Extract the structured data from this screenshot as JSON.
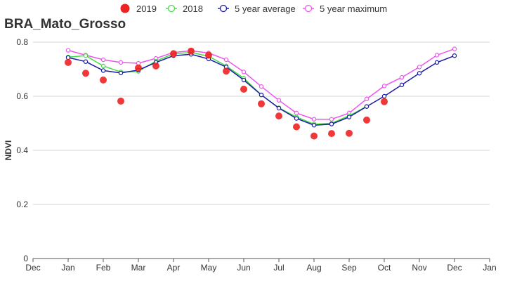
{
  "chart_data": {
    "type": "line",
    "title": "BRA_Mato_Grosso",
    "ylabel": "NDVI",
    "xlabel": "",
    "ylim": [
      0,
      0.8
    ],
    "y_ticks": [
      "0",
      "0.2",
      "0.4",
      "0.6",
      "0.8"
    ],
    "x_ticks": [
      "Dec",
      "Jan",
      "Feb",
      "Mar",
      "Apr",
      "May",
      "Jun",
      "Jul",
      "Aug",
      "Sep",
      "Oct",
      "Nov",
      "Dec",
      "Jan"
    ],
    "grid": "horizontal",
    "legend_position": "top",
    "series": [
      {
        "name": "2019",
        "style": "markers",
        "color": "#ee2222",
        "points": [
          [
            "Jan",
            0.725
          ],
          [
            "Jan",
            0.685
          ],
          [
            "Feb",
            0.66
          ],
          [
            "Feb",
            0.582
          ],
          [
            "Mar",
            0.705
          ],
          [
            "Mar",
            0.712
          ],
          [
            "Apr",
            0.757
          ],
          [
            "Apr",
            0.767
          ],
          [
            "May",
            0.752
          ],
          [
            "May",
            0.693
          ],
          [
            "Jun",
            0.626
          ],
          [
            "Jun",
            0.572
          ],
          [
            "Jul",
            0.527
          ],
          [
            "Jul",
            0.487
          ],
          [
            "Aug",
            0.453
          ],
          [
            "Aug",
            0.462
          ],
          [
            "Sep",
            0.463
          ],
          [
            "Sep",
            0.512
          ],
          [
            "Oct",
            0.58
          ]
        ]
      },
      {
        "name": "2018",
        "style": "line",
        "color": "#44dd44",
        "points": [
          [
            "Jan",
            0.745
          ],
          [
            "Jan",
            0.75
          ],
          [
            "Feb",
            0.712
          ],
          [
            "Feb",
            0.69
          ],
          [
            "Mar",
            0.692
          ],
          [
            "Mar",
            0.73
          ],
          [
            "Apr",
            0.757
          ],
          [
            "Apr",
            0.762
          ],
          [
            "May",
            0.748
          ],
          [
            "May",
            0.712
          ],
          [
            "Jun",
            0.667
          ],
          [
            "Jun",
            0.605
          ],
          [
            "Jul",
            0.557
          ],
          [
            "Jul",
            0.523
          ],
          [
            "Aug",
            0.497
          ],
          [
            "Aug",
            0.5
          ],
          [
            "Sep",
            0.528
          ],
          [
            "Sep",
            0.562
          ]
        ]
      },
      {
        "name": "5 year average",
        "style": "line",
        "color": "#1a1aa6",
        "points": [
          [
            "Jan",
            0.743
          ],
          [
            "Jan",
            0.728
          ],
          [
            "Feb",
            0.695
          ],
          [
            "Feb",
            0.686
          ],
          [
            "Mar",
            0.697
          ],
          [
            "Mar",
            0.725
          ],
          [
            "Apr",
            0.75
          ],
          [
            "Apr",
            0.755
          ],
          [
            "May",
            0.738
          ],
          [
            "May",
            0.708
          ],
          [
            "Jun",
            0.66
          ],
          [
            "Jun",
            0.605
          ],
          [
            "Jul",
            0.556
          ],
          [
            "Jul",
            0.518
          ],
          [
            "Aug",
            0.493
          ],
          [
            "Aug",
            0.497
          ],
          [
            "Sep",
            0.523
          ],
          [
            "Sep",
            0.562
          ],
          [
            "Oct",
            0.6
          ],
          [
            "Oct",
            0.642
          ],
          [
            "Nov",
            0.685
          ],
          [
            "Nov",
            0.725
          ],
          [
            "Dec",
            0.75
          ]
        ]
      },
      {
        "name": "5 year maximum",
        "style": "line",
        "color": "#ee55ee",
        "points": [
          [
            "Jan",
            0.77
          ],
          [
            "Jan",
            0.752
          ],
          [
            "Feb",
            0.735
          ],
          [
            "Feb",
            0.725
          ],
          [
            "Mar",
            0.722
          ],
          [
            "Mar",
            0.74
          ],
          [
            "Apr",
            0.762
          ],
          [
            "Apr",
            0.768
          ],
          [
            "May",
            0.76
          ],
          [
            "May",
            0.735
          ],
          [
            "Jun",
            0.69
          ],
          [
            "Jun",
            0.636
          ],
          [
            "Jul",
            0.585
          ],
          [
            "Jul",
            0.538
          ],
          [
            "Aug",
            0.515
          ],
          [
            "Aug",
            0.515
          ],
          [
            "Sep",
            0.538
          ],
          [
            "Sep",
            0.59
          ],
          [
            "Oct",
            0.638
          ],
          [
            "Oct",
            0.67
          ],
          [
            "Nov",
            0.708
          ],
          [
            "Nov",
            0.752
          ],
          [
            "Dec",
            0.775
          ]
        ]
      }
    ]
  }
}
